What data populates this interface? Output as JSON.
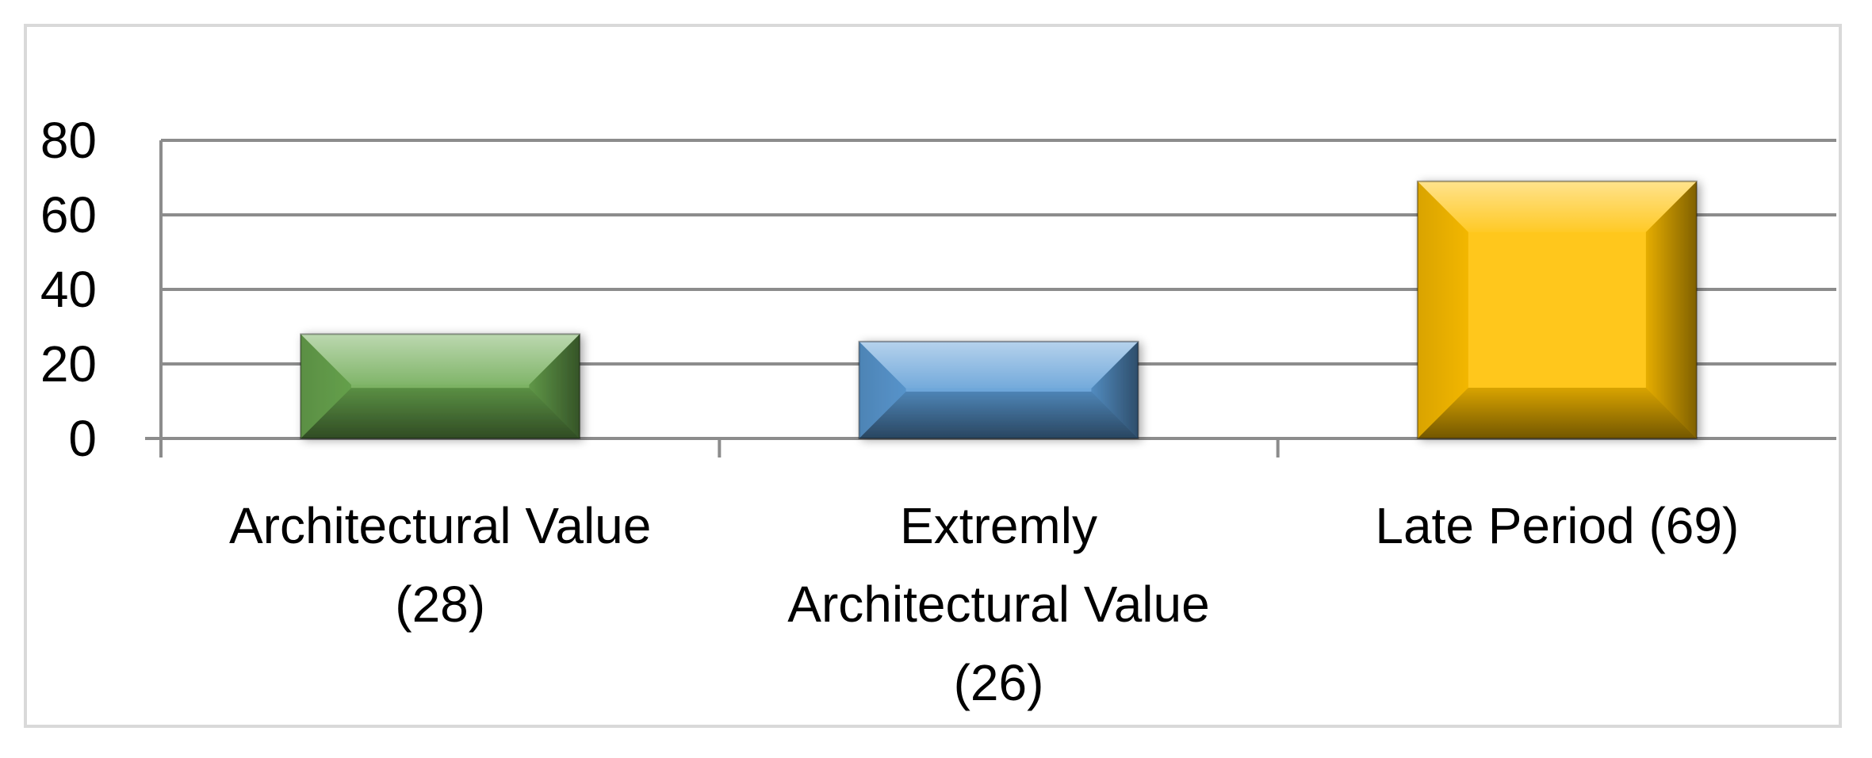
{
  "chart_data": {
    "type": "bar",
    "categories": [
      "Architectural Value (28)",
      "Extremly Architectural Value (26)",
      "Late Period (69)"
    ],
    "category_lines": [
      [
        "Architectural Value",
        "(28)"
      ],
      [
        "Extremly",
        "Architectural Value",
        "(26)"
      ],
      [
        "Late Period (69)"
      ]
    ],
    "values": [
      28,
      26,
      69
    ],
    "bar_colors": [
      "#6aa84f",
      "#5b9bd5",
      "#ffc000"
    ],
    "title": "",
    "xlabel": "",
    "ylabel": "",
    "ylim": [
      0,
      80
    ],
    "yticks": [
      "0",
      "20",
      "40",
      "60",
      "80"
    ],
    "grid": true,
    "legend": "none"
  },
  "colors": {
    "gridline": "#8c8c8c",
    "frame_border": "#d9d9d9",
    "background": "#ffffff"
  }
}
